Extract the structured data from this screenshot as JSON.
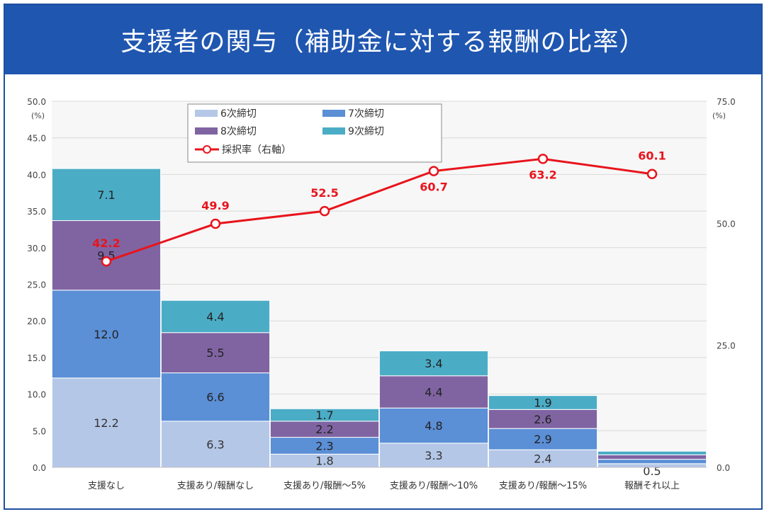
{
  "title": "支援者の関与（補助金に対する報酬の比率）",
  "chart_data": {
    "type": "bar",
    "stacked": true,
    "title": "支援者の関与（補助金に対する報酬の比率）",
    "categories": [
      "支援なし",
      "支援あり/報酬なし",
      "支援あり/報酬〜5%",
      "支援あり/報酬〜10%",
      "支援あり/報酬〜15%",
      "報酬それ以上"
    ],
    "y_left": {
      "unit": "(%)",
      "ylim": [
        0,
        50
      ],
      "ticks": [
        "0.0",
        "5.0",
        "10.0",
        "15.0",
        "20.0",
        "25.0",
        "30.0",
        "35.0",
        "40.0",
        "45.0",
        "50.0"
      ]
    },
    "y_right": {
      "unit": "(%)",
      "ylim": [
        0,
        75
      ],
      "ticks": [
        "0.0",
        "25.0",
        "50.0",
        "75.0"
      ]
    },
    "series": [
      {
        "name": "6次締切",
        "color": "#b4c7e7",
        "values": [
          12.2,
          6.3,
          1.8,
          3.3,
          2.4,
          0.5
        ],
        "labels": [
          "12.2",
          "6.3",
          "1.8",
          "3.3",
          "2.4",
          "0.5"
        ]
      },
      {
        "name": "7次締切",
        "color": "#5b8fd6",
        "values": [
          12.0,
          6.6,
          2.3,
          4.8,
          2.9,
          0.6
        ],
        "labels": [
          "12.0",
          "6.6",
          "2.3",
          "4.8",
          "2.9",
          ""
        ]
      },
      {
        "name": "8次締切",
        "color": "#8064a2",
        "values": [
          9.5,
          5.5,
          2.2,
          4.4,
          2.6,
          0.6
        ],
        "labels": [
          "9.5",
          "5.5",
          "2.2",
          "4.4",
          "2.6",
          ""
        ]
      },
      {
        "name": "9次締切",
        "color": "#4bacc6",
        "values": [
          7.1,
          4.4,
          1.7,
          3.4,
          1.9,
          0.5
        ],
        "labels": [
          "7.1",
          "4.4",
          "1.7",
          "3.4",
          "1.9",
          ""
        ]
      }
    ],
    "line": {
      "name": "採択率（右軸）",
      "color": "#e8141c",
      "values": [
        42.2,
        49.9,
        52.5,
        60.7,
        63.2,
        60.1
      ],
      "labels": [
        "42.2",
        "49.9",
        "52.5",
        "60.7",
        "63.2",
        "60.1"
      ]
    },
    "legend_position": "top-left",
    "grid": true
  }
}
